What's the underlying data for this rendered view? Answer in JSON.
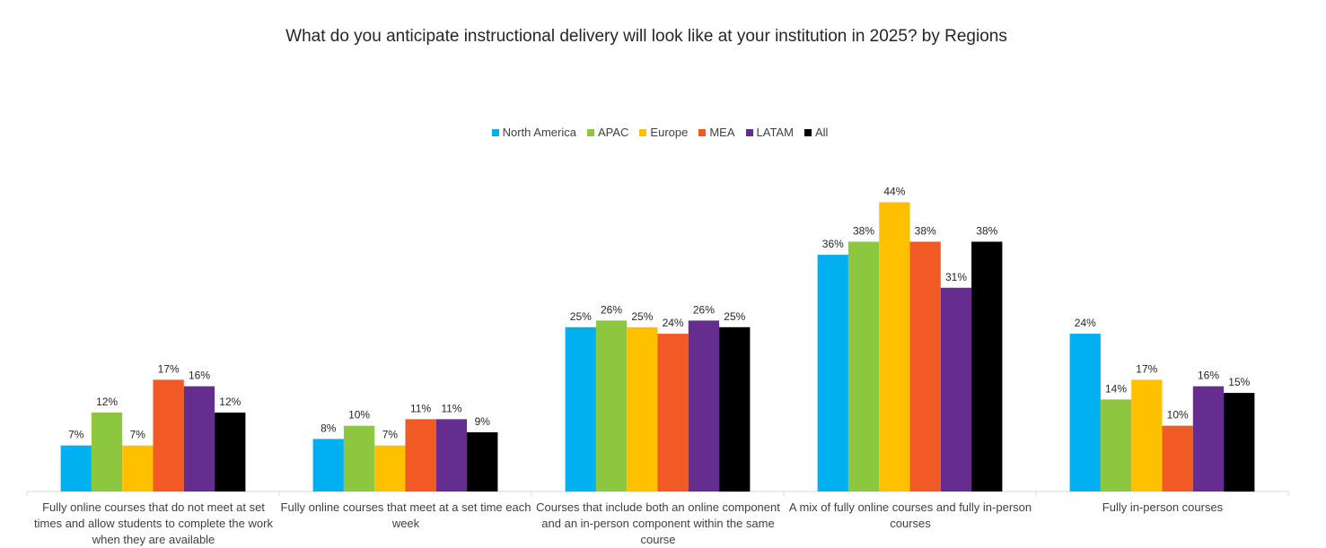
{
  "chart_data": {
    "type": "bar",
    "title": "What do you anticipate instructional delivery will look like at your institution in 2025? by Regions",
    "categories": [
      "Fully online courses that do not meet at set times and allow students to complete the work when they are available",
      "Fully online courses that meet at a set time each week",
      "Courses that include both an online component and an in-person component within the same course",
      "A mix of fully online courses and fully in-person courses",
      "Fully in-person courses"
    ],
    "series": [
      {
        "name": "North America",
        "color": "#00B0F0",
        "values": [
          7,
          8,
          25,
          36,
          24
        ],
        "labels": [
          "7%",
          "8%",
          "25%",
          "36%",
          "24%"
        ]
      },
      {
        "name": "APAC",
        "color": "#8DC63F",
        "values": [
          12,
          10,
          26,
          38,
          14
        ],
        "labels": [
          "12%",
          "10%",
          "26%",
          "38%",
          "14%"
        ]
      },
      {
        "name": "Europe",
        "color": "#FFC000",
        "values": [
          7,
          7,
          25,
          44,
          17
        ],
        "labels": [
          "7%",
          "7%",
          "25%",
          "44%",
          "17%"
        ]
      },
      {
        "name": "MEA",
        "color": "#F15A24",
        "values": [
          17,
          11,
          24,
          38,
          10
        ],
        "labels": [
          "17%",
          "11%",
          "24%",
          "38%",
          "10%"
        ]
      },
      {
        "name": "LATAM",
        "color": "#662D91",
        "values": [
          16,
          11,
          26,
          31,
          16
        ],
        "labels": [
          "16%",
          "11%",
          "26%",
          "31%",
          "16%"
        ]
      },
      {
        "name": "All",
        "color": "#000000",
        "values": [
          12,
          9,
          25,
          38,
          15
        ],
        "labels": [
          "12%",
          "9%",
          "25%",
          "38%",
          "15%"
        ]
      }
    ],
    "ylim": [
      0,
      50
    ],
    "legend": "top-center",
    "grid": false
  }
}
